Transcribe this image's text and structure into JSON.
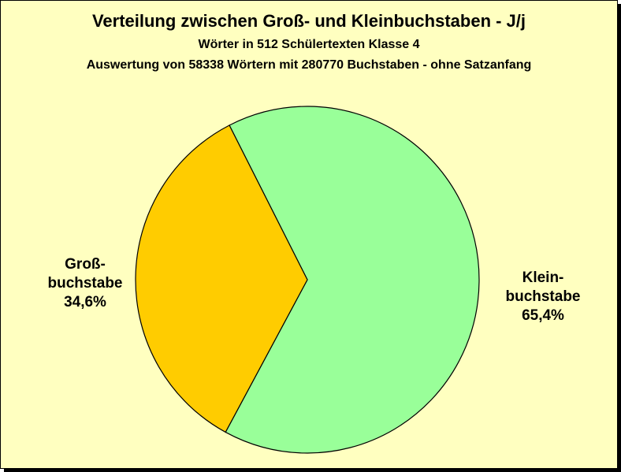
{
  "page": {
    "background": "#ffffc0",
    "title": "Verteilung zwischen Groß- und  Kleinbuchstaben - J/j",
    "subtitle1": "Wörter in 512 Schülertexten Klasse 4",
    "subtitle2": "Auswertung von 58338 Wörtern mit 280770 Buchstaben - ohne Satzanfang"
  },
  "chart_data": {
    "type": "pie",
    "title": "Verteilung zwischen Groß- und  Kleinbuchstaben - J/j",
    "subtitle": [
      "Wörter in 512 Schülertexten Klasse 4",
      "Auswertung von 58338 Wörtern mit 280770 Buchstaben - ohne Satzanfang"
    ],
    "slices": [
      {
        "label": [
          "Klein-",
          "buchstabe"
        ],
        "value": 65.4,
        "value_label": "65,4%",
        "color": "#99ff99"
      },
      {
        "label": [
          "Groß-",
          "buchstabe"
        ],
        "value": 34.6,
        "value_label": "34,6%",
        "color": "#ffcc00"
      }
    ]
  }
}
